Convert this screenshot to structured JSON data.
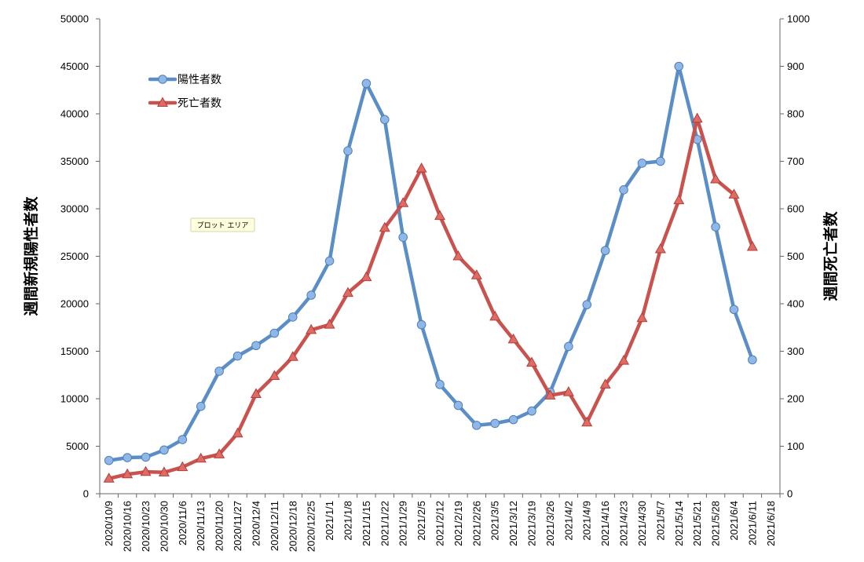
{
  "chart_data": {
    "type": "line",
    "tooltip": "プロット エリア",
    "left_axis": {
      "label": "週間新規陽性者数",
      "min": 0,
      "max": 50000,
      "step": 5000
    },
    "right_axis": {
      "label": "週間死亡者数",
      "min": 0,
      "max": 1000,
      "step": 100
    },
    "categories": [
      "2020/10/9",
      "2020/10/16",
      "2020/10/23",
      "2020/10/30",
      "2020/11/6",
      "2020/11/13",
      "2020/11/20",
      "2020/11/27",
      "2020/12/4",
      "2020/12/11",
      "2020/12/18",
      "2020/12/25",
      "2021/1/1",
      "2021/1/8",
      "2021/1/15",
      "2021/1/22",
      "2021/1/29",
      "2021/2/5",
      "2021/2/12",
      "2021/2/19",
      "2021/2/26",
      "2021/3/5",
      "2021/3/12",
      "2021/3/19",
      "2021/3/26",
      "2021/4/2",
      "2021/4/9",
      "2021/4/16",
      "2021/4/23",
      "2021/4/30",
      "2021/5/7",
      "2021/5/14",
      "2021/5/21",
      "2021/5/28",
      "2021/6/4",
      "2021/6/11",
      "2021/6/18"
    ],
    "series": [
      {
        "name": "陽性者数",
        "axis": "left",
        "color": "#5b8ec7",
        "marker": "circle",
        "values": [
          3500,
          3800,
          3850,
          4600,
          5700,
          9200,
          12900,
          14500,
          15600,
          16900,
          18600,
          20900,
          24500,
          36100,
          43200,
          39400,
          27000,
          17800,
          11500,
          9300,
          7200,
          7400,
          7800,
          8700,
          10700,
          15500,
          19900,
          25600,
          32000,
          34800,
          35000,
          45000,
          37300,
          28100,
          19400,
          14100,
          null
        ]
      },
      {
        "name": "死亡者数",
        "axis": "right",
        "color": "#c9524e",
        "marker": "triangle",
        "values": [
          32,
          41,
          46,
          45,
          56,
          74,
          83,
          127,
          210,
          248,
          288,
          345,
          356,
          423,
          456,
          560,
          612,
          685,
          585,
          500,
          460,
          373,
          325,
          276,
          207,
          214,
          150,
          230,
          280,
          370,
          515,
          618,
          790,
          662,
          630,
          520,
          null
        ]
      }
    ]
  }
}
